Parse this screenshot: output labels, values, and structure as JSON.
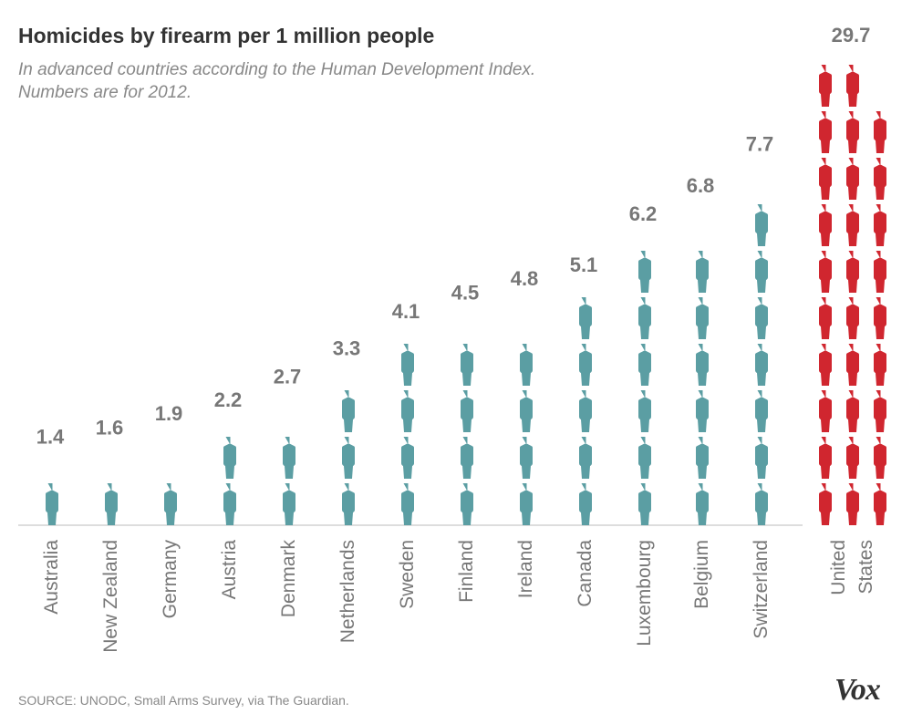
{
  "title": "Homicides by firearm per 1 million people",
  "subtitle_lines": [
    "In advanced countries according to the Human Development Index.",
    "Numbers are for 2012."
  ],
  "source": "SOURCE: UNODC, Small Arms Survey, via The Guardian.",
  "logo": "Vox",
  "chart_data": {
    "type": "pictogram-bar",
    "unit": "1 figure = 1 homicide by firearm per 1 million people",
    "categories": [
      "Australia",
      "New Zealand",
      "Germany",
      "Austria",
      "Denmark",
      "Netherlands",
      "Sweden",
      "Finland",
      "Ireland",
      "Canada",
      "Luxembourg",
      "Belgium",
      "Switzerland",
      "United States"
    ],
    "category_label_lines": [
      [
        "Australia"
      ],
      [
        "New Zealand"
      ],
      [
        "Germany"
      ],
      [
        "Austria"
      ],
      [
        "Denmark"
      ],
      [
        "Netherlands"
      ],
      [
        "Sweden"
      ],
      [
        "Finland"
      ],
      [
        "Ireland"
      ],
      [
        "Canada"
      ],
      [
        "Luxembourg"
      ],
      [
        "Belgium"
      ],
      [
        "Switzerland"
      ],
      [
        "United",
        "States"
      ]
    ],
    "values": [
      1.4,
      1.6,
      1.9,
      2.2,
      2.7,
      3.3,
      4.1,
      4.5,
      4.8,
      5.1,
      6.2,
      6.8,
      7.7,
      29.7
    ],
    "data_labels": [
      "1.4",
      "1.6",
      "1.9",
      "2.2",
      "2.7",
      "3.3",
      "4.1",
      "4.5",
      "4.8",
      "5.1",
      "6.2",
      "6.8",
      "7.7",
      "29.7"
    ],
    "colors": {
      "default": "#5b9ea3",
      "highlight": "#d0262f",
      "labels": "#777777",
      "baseline": "#bbbbbb"
    },
    "highlight_category": "United States"
  }
}
